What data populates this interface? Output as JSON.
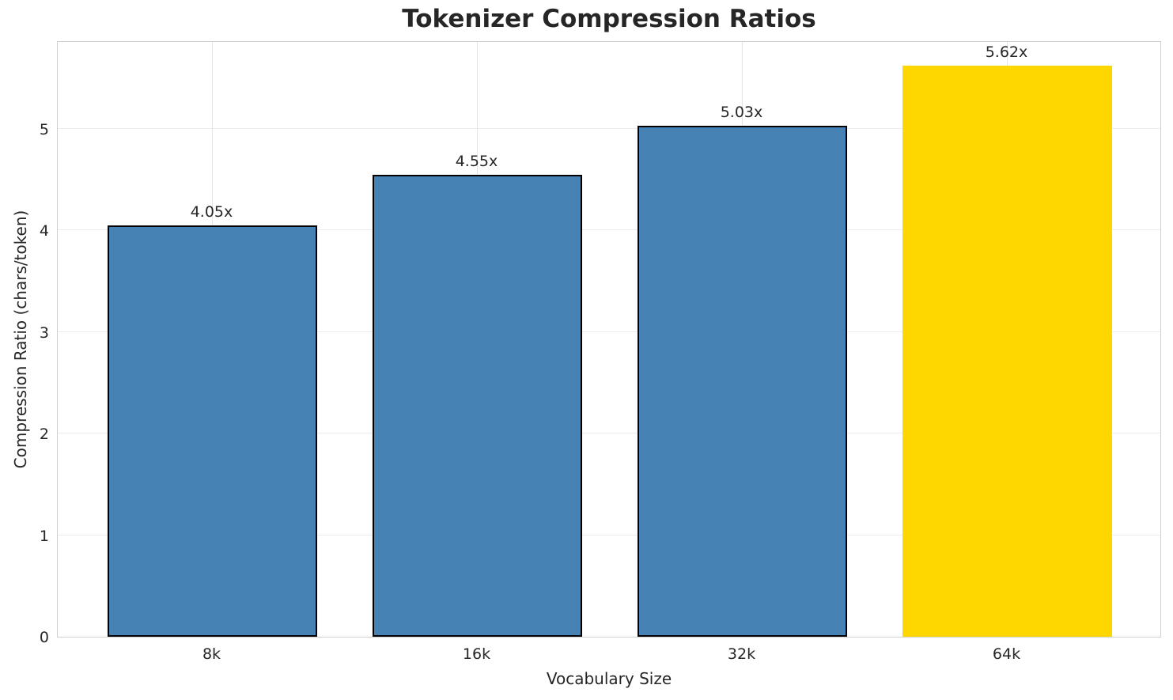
{
  "chart_data": {
    "type": "bar",
    "title": "Tokenizer Compression Ratios",
    "xlabel": "Vocabulary Size",
    "ylabel": "Compression Ratio (chars/token)",
    "categories": [
      "8k",
      "16k",
      "32k",
      "64k"
    ],
    "values": [
      4.05,
      4.55,
      5.03,
      5.62
    ],
    "bar_labels": [
      "4.05x",
      "4.55x",
      "5.03x",
      "5.62x"
    ],
    "bar_colors": [
      "#4682b4",
      "#4682b4",
      "#4682b4",
      "#ffd700"
    ],
    "bar_edge_colors": [
      "#000000",
      "#000000",
      "#000000",
      "none"
    ],
    "highlight_index": 3,
    "ylim": [
      0,
      5.87
    ],
    "yticks": [
      0,
      1,
      2,
      3,
      4,
      5
    ],
    "grid": true,
    "legend": "none",
    "grid_color": "#ececec",
    "spine_color": "#d0d0d0",
    "text_color": "#262626",
    "background_color": "#ffffff"
  }
}
